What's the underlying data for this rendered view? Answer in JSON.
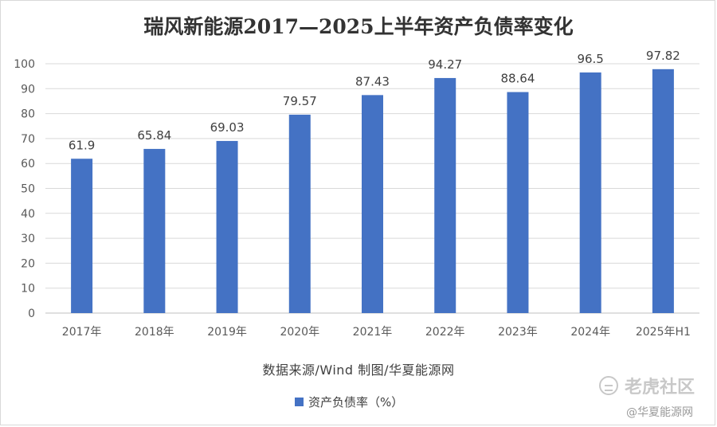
{
  "chart_data": {
    "type": "bar",
    "title": "瑞风新能源2017—2025上半年资产负债率变化",
    "categories": [
      "2017年",
      "2018年",
      "2019年",
      "2020年",
      "2021年",
      "2022年",
      "2023年",
      "2024年",
      "2025年H1"
    ],
    "series": [
      {
        "name": "资产负债率（%）",
        "values": [
          61.9,
          65.84,
          69.03,
          79.57,
          87.43,
          94.27,
          88.64,
          96.5,
          97.82
        ]
      }
    ],
    "data_labels": [
      "61.9",
      "65.84",
      "69.03",
      "79.57",
      "87.43",
      "94.27",
      "88.64",
      "96.5",
      "97.82"
    ],
    "y_ticks": [
      0,
      10,
      20,
      30,
      40,
      50,
      60,
      70,
      80,
      90,
      100
    ],
    "ylim": [
      0,
      100
    ],
    "grid": true,
    "legend_position": "bottom",
    "bar_color": "#4472c4",
    "source_note": "数据来源/Wind  制图/华夏能源网"
  },
  "watermark": {
    "brand": "老虎社区",
    "handle": "@华夏能源网"
  }
}
